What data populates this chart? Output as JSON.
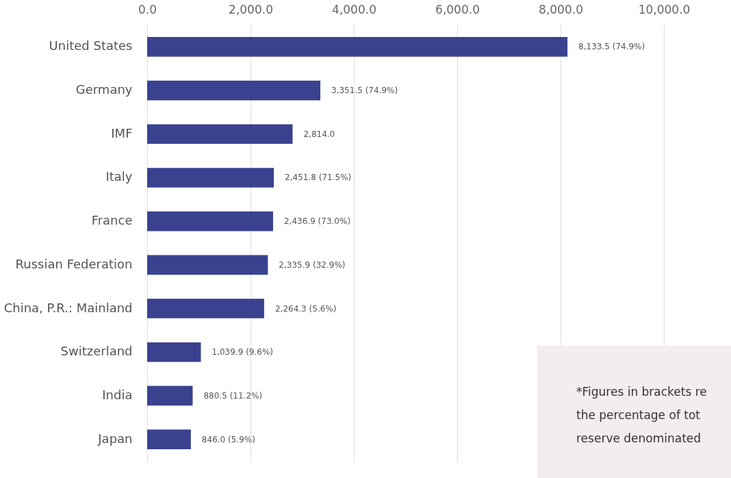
{
  "chart_data": {
    "type": "bar",
    "orientation": "horizontal",
    "categories": [
      "United States",
      "Germany",
      "IMF",
      "Italy",
      "France",
      "Russian Federation",
      "China, P.R.: Mainland",
      "Switzerland",
      "India",
      "Japan"
    ],
    "values": [
      8133.5,
      3351.5,
      2814.0,
      2451.8,
      2436.9,
      2335.9,
      2264.3,
      1039.9,
      880.5,
      846.0
    ],
    "value_labels": [
      "8,133.5 (74.9%)",
      "3,351.5 (74.9%)",
      "2,814.0",
      "2,451.8 (71.5%)",
      "2,436.9 (73.0%)",
      "2,335.9 (32.9%)",
      "2,264.3 (5.6%)",
      "1,039.9 (9.6%)",
      "880.5 (11.2%)",
      "846.0 (5.9%)"
    ],
    "color": "#3a4290",
    "xlim": [
      0,
      10000
    ],
    "xticks": [
      {
        "value": 0,
        "label": "0.0"
      },
      {
        "value": 2000,
        "label": "2,000.0"
      },
      {
        "value": 4000,
        "label": "4,000.0"
      },
      {
        "value": 6000,
        "label": "6,000.0"
      },
      {
        "value": 8000,
        "label": "8,000.0"
      },
      {
        "value": 10000,
        "label": "10,000.0"
      }
    ],
    "grid": "x",
    "annotations": [
      "*Figures in brackets re",
      "the percentage of tot",
      "reserve denominated"
    ]
  }
}
